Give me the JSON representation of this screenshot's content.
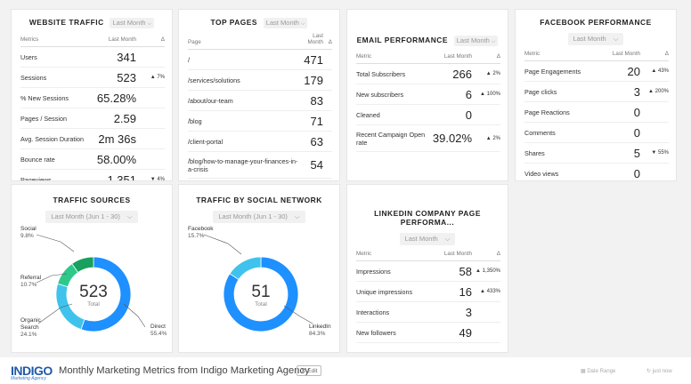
{
  "website_traffic": {
    "title": "WEBSITE TRAFFIC",
    "range": "Last Month",
    "col_metric": "Metrics",
    "col_value": "Last Month",
    "col_delta": "Δ",
    "rows": [
      {
        "metric": "Users",
        "value": "341",
        "delta": ""
      },
      {
        "metric": "Sessions",
        "value": "523",
        "delta": "▲ 7%"
      },
      {
        "metric": "% New Sessions",
        "value": "65.28%",
        "delta": ""
      },
      {
        "metric": "Pages / Session",
        "value": "2.59",
        "delta": ""
      },
      {
        "metric": "Avg. Session Duration",
        "value": "2m 36s",
        "delta": ""
      },
      {
        "metric": "Bounce rate",
        "value": "58.00%",
        "delta": ""
      },
      {
        "metric": "Pageviews",
        "value": "1,351",
        "delta": "▼ 4%"
      }
    ]
  },
  "top_pages": {
    "title": "TOP PAGES",
    "range": "Last Month",
    "col_page": "Page",
    "col_value_1": "Last",
    "col_value_2": "Month",
    "col_delta": "Δ",
    "rows": [
      {
        "page": "/",
        "value": "471"
      },
      {
        "page": "/services/solutions",
        "value": "179"
      },
      {
        "page": "/about/our-team",
        "value": "83"
      },
      {
        "page": "/blog",
        "value": "71"
      },
      {
        "page": "/client-portal",
        "value": "63"
      },
      {
        "page": "/blog/how-to-manage-your-finances-in-a-crisis",
        "value": "54"
      }
    ]
  },
  "email_performance": {
    "title": "EMAIL PERFORMANCE",
    "range": "Last Month",
    "col_metric": "Metric",
    "col_value": "Last Month",
    "col_delta": "Δ",
    "rows": [
      {
        "metric": "Total Subscribers",
        "value": "266",
        "delta": "▲ 2%"
      },
      {
        "metric": "New subscribers",
        "value": "6",
        "delta": "▲ 100%"
      },
      {
        "metric": "Cleaned",
        "value": "0",
        "delta": ""
      },
      {
        "metric": "Recent Campaign Open rate",
        "value": "39.02%",
        "delta": "▲ 2%"
      }
    ]
  },
  "facebook_performance": {
    "title": "FACEBOOK PERFORMANCE",
    "range": "Last Month",
    "col_metric": "Metric",
    "col_value": "Last Month",
    "col_delta": "Δ",
    "rows": [
      {
        "metric": "Page Engagements",
        "value": "20",
        "delta": "▲ 43%",
        "dir": "up"
      },
      {
        "metric": "Page clicks",
        "value": "3",
        "delta": "▲ 200%",
        "dir": "up"
      },
      {
        "metric": "Page Reactions",
        "value": "0",
        "delta": "",
        "dir": ""
      },
      {
        "metric": "Comments",
        "value": "0",
        "delta": "",
        "dir": ""
      },
      {
        "metric": "Shares",
        "value": "5",
        "delta": "▼ 55%",
        "dir": "down"
      },
      {
        "metric": "Video views",
        "value": "0",
        "delta": "",
        "dir": ""
      }
    ]
  },
  "traffic_sources": {
    "title": "TRAFFIC SOURCES",
    "range": "Last Month (Jun 1 - 30)",
    "total": "523",
    "total_label": "Total",
    "legend": [
      {
        "name": "Social",
        "pct": "9.8%"
      },
      {
        "name": "Referral",
        "pct": "10.7%"
      },
      {
        "name": "Organic Search",
        "name_1": "Organic",
        "name_2": "Search",
        "pct": "24.1%"
      },
      {
        "name": "Direct",
        "pct": "55.4%"
      }
    ]
  },
  "traffic_by_social": {
    "title": "TRAFFIC BY SOCIAL NETWORK",
    "range": "Last Month (Jun 1 - 30)",
    "total": "51",
    "total_label": "Total",
    "legend": [
      {
        "name": "Facebook",
        "pct": "15.7%"
      },
      {
        "name": "LinkedIn",
        "pct": "84.3%"
      }
    ]
  },
  "linkedin": {
    "title": "LINKEDIN COMPANY PAGE PERFORMA...",
    "range": "Last Month",
    "col_metric": "Metric",
    "col_value": "Last Month",
    "col_delta": "Δ",
    "rows": [
      {
        "metric": "Impressions",
        "value": "58",
        "delta": "▲ 1,350%"
      },
      {
        "metric": "Unique impressions",
        "value": "16",
        "delta": "▲ 433%"
      },
      {
        "metric": "Interactions",
        "value": "3",
        "delta": ""
      },
      {
        "metric": "New followers",
        "value": "49",
        "delta": ""
      }
    ]
  },
  "footer": {
    "logo": "INDIGO",
    "logo_tagline": "Marketing Agency",
    "title": "Monthly Marketing Metrics from Indigo Marketing Agency",
    "edit": "Edit",
    "date_range": "Date Range",
    "updated": "just now"
  },
  "colors": {
    "direct": "#1e90ff",
    "organic": "#3fc3ec",
    "referral": "#2cc98a",
    "social": "#17a05e",
    "facebook": "#3fc3ec",
    "linkedin": "#1e90ff",
    "up": "#2dba6a",
    "down": "#e24b4b"
  },
  "chart_data": [
    {
      "type": "pie",
      "title": "TRAFFIC SOURCES",
      "categories": [
        "Direct",
        "Organic Search",
        "Referral",
        "Social"
      ],
      "values": [
        55.4,
        24.1,
        10.7,
        9.8
      ],
      "total": 523
    },
    {
      "type": "pie",
      "title": "TRAFFIC BY SOCIAL NETWORK",
      "categories": [
        "LinkedIn",
        "Facebook"
      ],
      "values": [
        84.3,
        15.7
      ],
      "total": 51
    }
  ]
}
